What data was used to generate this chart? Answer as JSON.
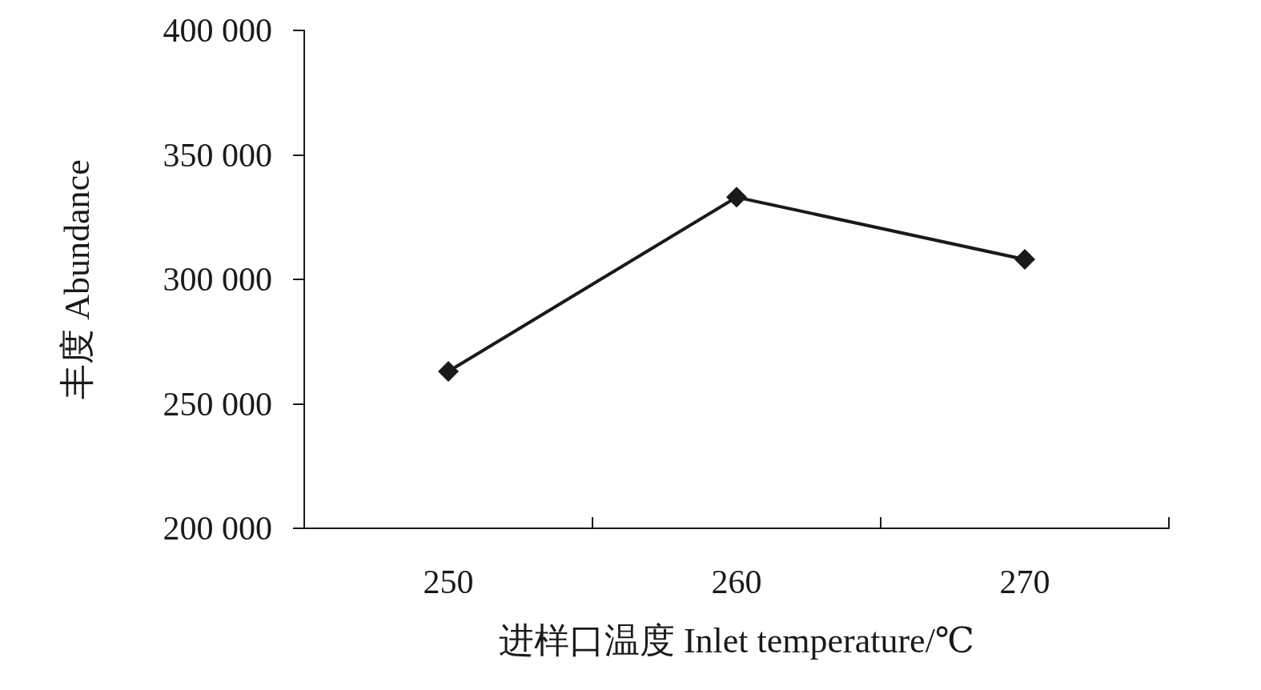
{
  "chart_data": {
    "type": "line",
    "xlabel": "进样口温度 Inlet temperature/℃",
    "ylabel": "丰度 Abundance",
    "categories": [
      "250",
      "260",
      "270"
    ],
    "series": [
      {
        "color": "#1a1a1a",
        "values": [
          263000,
          333000,
          308000
        ]
      }
    ],
    "ylim": [
      200000,
      400000
    ],
    "yticks": [
      {
        "value": 200000,
        "label": "200 000"
      },
      {
        "value": 250000,
        "label": "250 000"
      },
      {
        "value": 300000,
        "label": "300 000"
      },
      {
        "value": 350000,
        "label": "350 000"
      },
      {
        "value": 400000,
        "label": "400 000"
      }
    ],
    "marker": "diamond",
    "line_style": "solid",
    "grid": false
  }
}
